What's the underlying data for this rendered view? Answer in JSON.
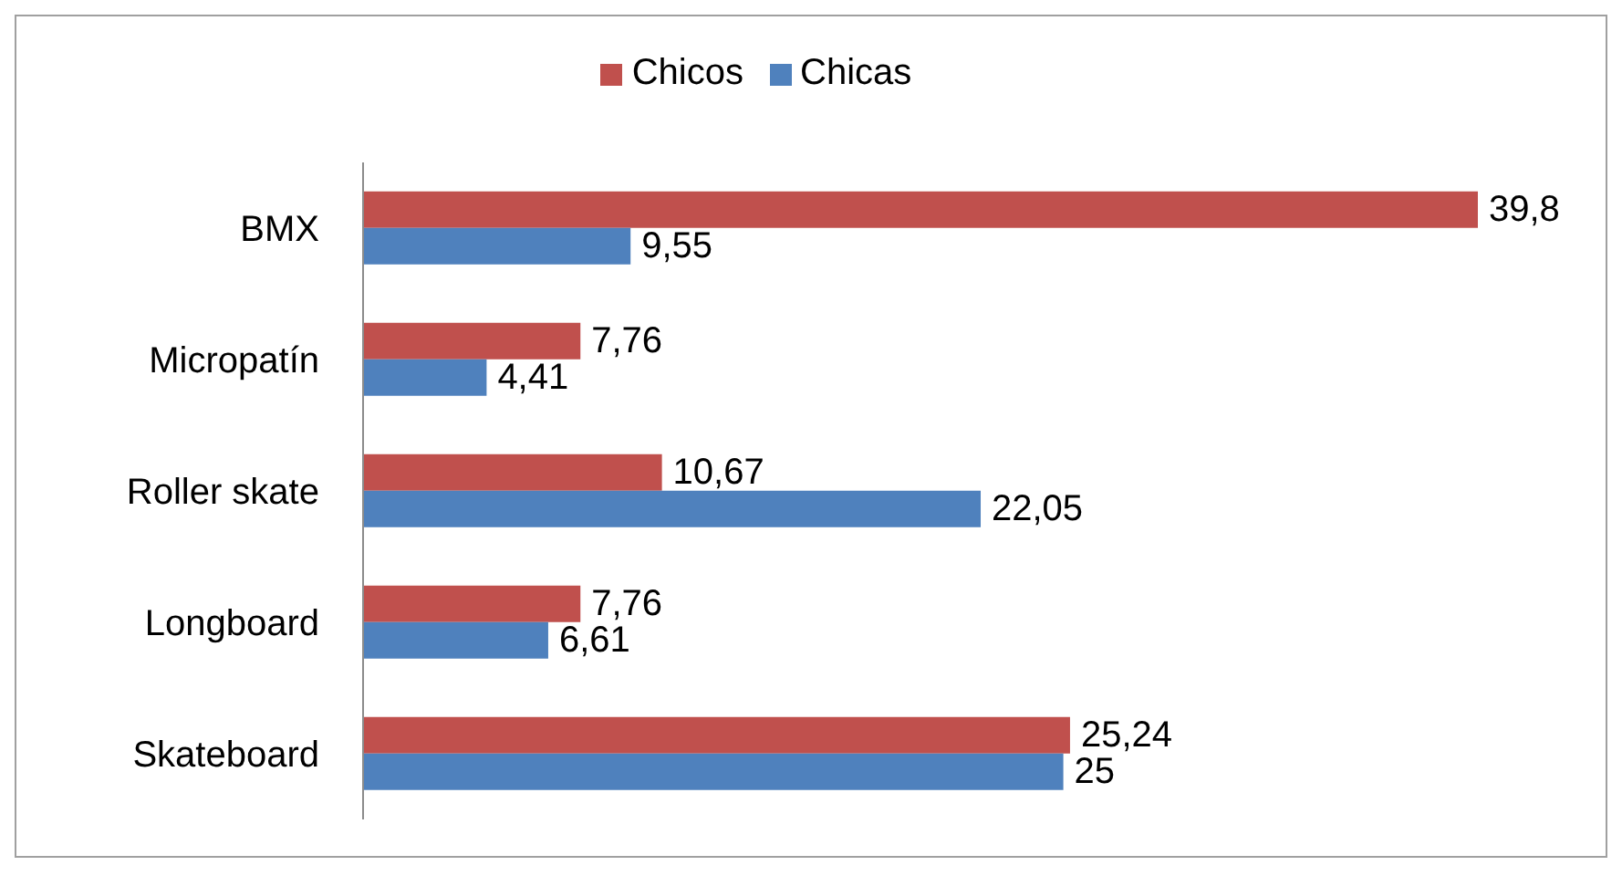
{
  "chart_data": {
    "type": "bar",
    "orientation": "horizontal",
    "categories": [
      "BMX",
      "Micropatín",
      "Roller skate",
      "Longboard",
      "Skateboard"
    ],
    "series": [
      {
        "name": "Chicos",
        "color": "#c0504d",
        "values": [
          39.8,
          7.76,
          10.67,
          7.76,
          25.24
        ],
        "value_labels": [
          "39,8",
          "7,76",
          "10,67",
          "7,76",
          "25,24"
        ]
      },
      {
        "name": "Chicas",
        "color": "#4f81bd",
        "values": [
          9.55,
          4.41,
          22.05,
          6.61,
          25
        ],
        "value_labels": [
          "9,55",
          "4,41",
          "22,05",
          "6,61",
          "25"
        ]
      }
    ],
    "legend": "top"
  }
}
